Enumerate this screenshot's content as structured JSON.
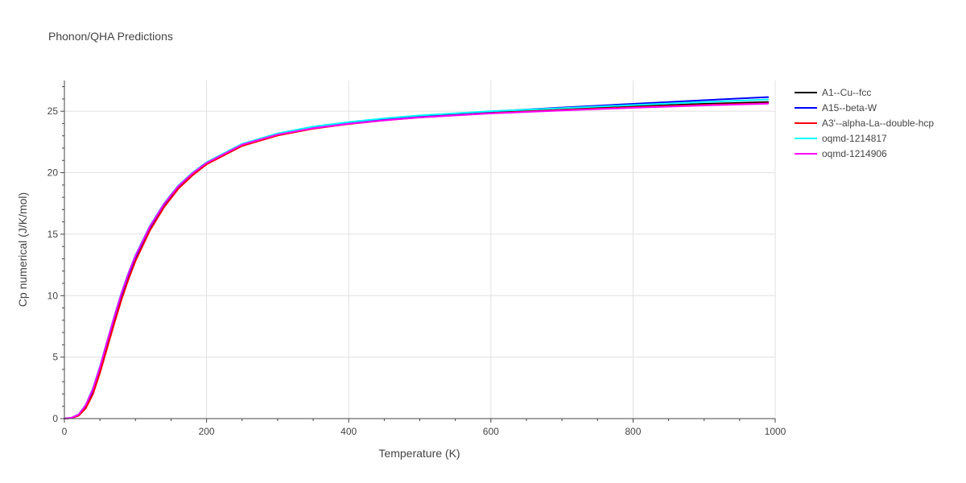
{
  "chart_data": {
    "type": "line",
    "title": "Phonon/QHA Predictions",
    "xlabel": "Temperature (K)",
    "ylabel": "Cp numerical (J/K/mol)",
    "xlim": [
      0,
      1000
    ],
    "ylim": [
      0,
      27.5
    ],
    "xticks": [
      0,
      200,
      400,
      600,
      800,
      1000
    ],
    "yticks": [
      0,
      5,
      10,
      15,
      20,
      25
    ],
    "grid": true,
    "legend_position": "right",
    "x": [
      0,
      10,
      20,
      30,
      40,
      50,
      60,
      70,
      80,
      90,
      100,
      120,
      140,
      160,
      180,
      200,
      250,
      300,
      350,
      400,
      450,
      500,
      600,
      700,
      800,
      900,
      990
    ],
    "series": [
      {
        "name": "A1--Cu--fcc",
        "color": "#000000",
        "values": [
          0,
          0.05,
          0.25,
          0.85,
          2.0,
          3.75,
          5.75,
          7.75,
          9.65,
          11.35,
          12.85,
          15.3,
          17.2,
          18.7,
          19.8,
          20.7,
          22.2,
          23.05,
          23.6,
          23.98,
          24.28,
          24.52,
          24.88,
          25.15,
          25.4,
          25.6,
          25.75
        ]
      },
      {
        "name": "A15--beta-W",
        "color": "#0000ff",
        "values": [
          0,
          0.06,
          0.3,
          1.0,
          2.25,
          4.0,
          6.0,
          8.0,
          9.9,
          11.6,
          13.05,
          15.45,
          17.35,
          18.8,
          19.9,
          20.75,
          22.25,
          23.1,
          23.65,
          24.05,
          24.35,
          24.6,
          24.98,
          25.3,
          25.6,
          25.9,
          26.15
        ]
      },
      {
        "name": "A3'--alpha-La--double-hcp",
        "color": "#ff0000",
        "values": [
          0,
          0.05,
          0.24,
          0.84,
          1.98,
          3.72,
          5.72,
          7.72,
          9.62,
          11.32,
          12.82,
          15.27,
          17.18,
          18.68,
          19.78,
          20.68,
          22.18,
          23.03,
          23.58,
          23.96,
          24.26,
          24.5,
          24.85,
          25.1,
          25.33,
          25.52,
          25.65
        ]
      },
      {
        "name": "oqmd-1214817",
        "color": "#00ffff",
        "values": [
          0,
          0.07,
          0.35,
          1.12,
          2.45,
          4.25,
          6.3,
          8.3,
          10.2,
          11.85,
          13.3,
          15.65,
          17.5,
          18.95,
          20.0,
          20.85,
          22.35,
          23.2,
          23.75,
          24.12,
          24.42,
          24.66,
          25.0,
          25.25,
          25.5,
          25.75,
          25.95
        ]
      },
      {
        "name": "oqmd-1214906",
        "color": "#ff00ff",
        "values": [
          0,
          0.07,
          0.33,
          1.1,
          2.4,
          4.2,
          6.25,
          8.25,
          10.15,
          11.8,
          13.25,
          15.6,
          17.45,
          18.9,
          19.95,
          20.8,
          22.28,
          23.1,
          23.62,
          23.98,
          24.26,
          24.5,
          24.82,
          25.06,
          25.28,
          25.47,
          25.62
        ]
      }
    ]
  }
}
